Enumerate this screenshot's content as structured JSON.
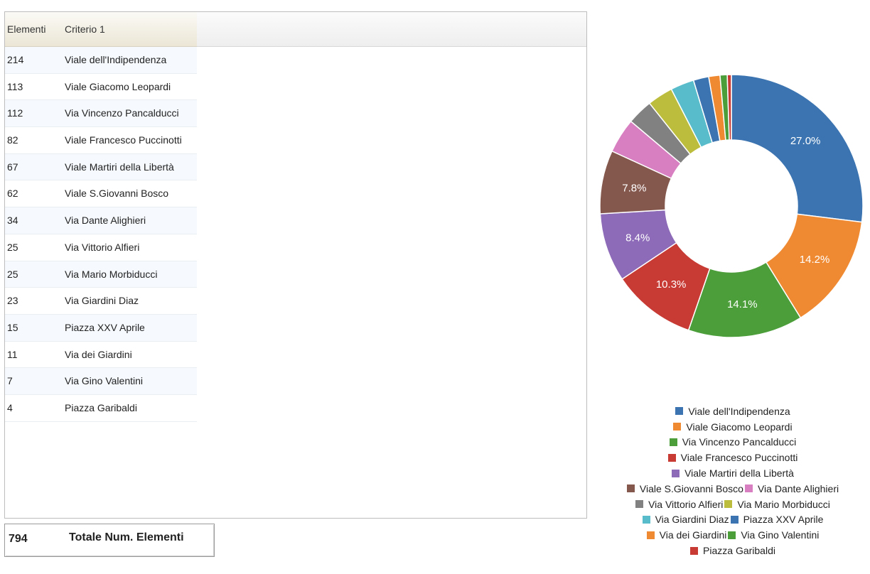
{
  "table": {
    "headers": [
      "Elementi",
      "Criterio 1"
    ],
    "rows": [
      {
        "count": "214",
        "name": "Viale dell'Indipendenza"
      },
      {
        "count": "113",
        "name": "Viale Giacomo Leopardi"
      },
      {
        "count": "112",
        "name": "Via Vincenzo Pancalducci"
      },
      {
        "count": "82",
        "name": "Viale Francesco Puccinotti"
      },
      {
        "count": "67",
        "name": "Viale Martiri della Libertà"
      },
      {
        "count": "62",
        "name": "Viale S.Giovanni Bosco"
      },
      {
        "count": "34",
        "name": "Via Dante Alighieri"
      },
      {
        "count": "25",
        "name": "Via Vittorio Alfieri"
      },
      {
        "count": "25",
        "name": "Via Mario Morbiducci"
      },
      {
        "count": "23",
        "name": "Via Giardini Diaz"
      },
      {
        "count": "15",
        "name": "Piazza XXV Aprile"
      },
      {
        "count": "11",
        "name": "Via dei Giardini"
      },
      {
        "count": "7",
        "name": "Via Gino Valentini"
      },
      {
        "count": "4",
        "name": "Piazza Garibaldi"
      }
    ]
  },
  "total": {
    "value": "794",
    "label": "Totale Num. Elementi"
  },
  "chart_data": {
    "type": "pie",
    "donut": true,
    "categories": [
      "Viale dell'Indipendenza",
      "Viale Giacomo Leopardi",
      "Via Vincenzo Pancalducci",
      "Viale Francesco Puccinotti",
      "Viale Martiri della Libertà",
      "Viale S.Giovanni Bosco",
      "Via Dante Alighieri",
      "Via Vittorio Alfieri",
      "Via Mario Morbiducci",
      "Via Giardini Diaz",
      "Piazza XXV Aprile",
      "Via dei Giardini",
      "Via Gino Valentini",
      "Piazza Garibaldi"
    ],
    "values": [
      214,
      113,
      112,
      82,
      67,
      62,
      34,
      25,
      25,
      23,
      15,
      11,
      7,
      4
    ],
    "data_labels": [
      "27.0%",
      "14.2%",
      "14.1%",
      "10.3%",
      "8.4%",
      "7.8%",
      "",
      "",
      "",
      "",
      "",
      "",
      "",
      ""
    ],
    "colors": [
      "#3b74b0",
      "#ef8a33",
      "#4c9e3b",
      "#c83a34",
      "#8d6bb8",
      "#85584e",
      "#d77fc0",
      "#818181",
      "#bcbd3d",
      "#58bccb",
      "#3b74b0",
      "#ef8a33",
      "#4c9e3b",
      "#c83a34"
    ],
    "legend_position": "bottom",
    "legend_rows": [
      [
        0
      ],
      [
        1
      ],
      [
        2
      ],
      [
        3
      ],
      [
        4
      ],
      [
        5,
        6
      ],
      [
        7,
        8
      ],
      [
        9,
        10
      ],
      [
        11,
        12
      ],
      [
        13
      ]
    ]
  }
}
